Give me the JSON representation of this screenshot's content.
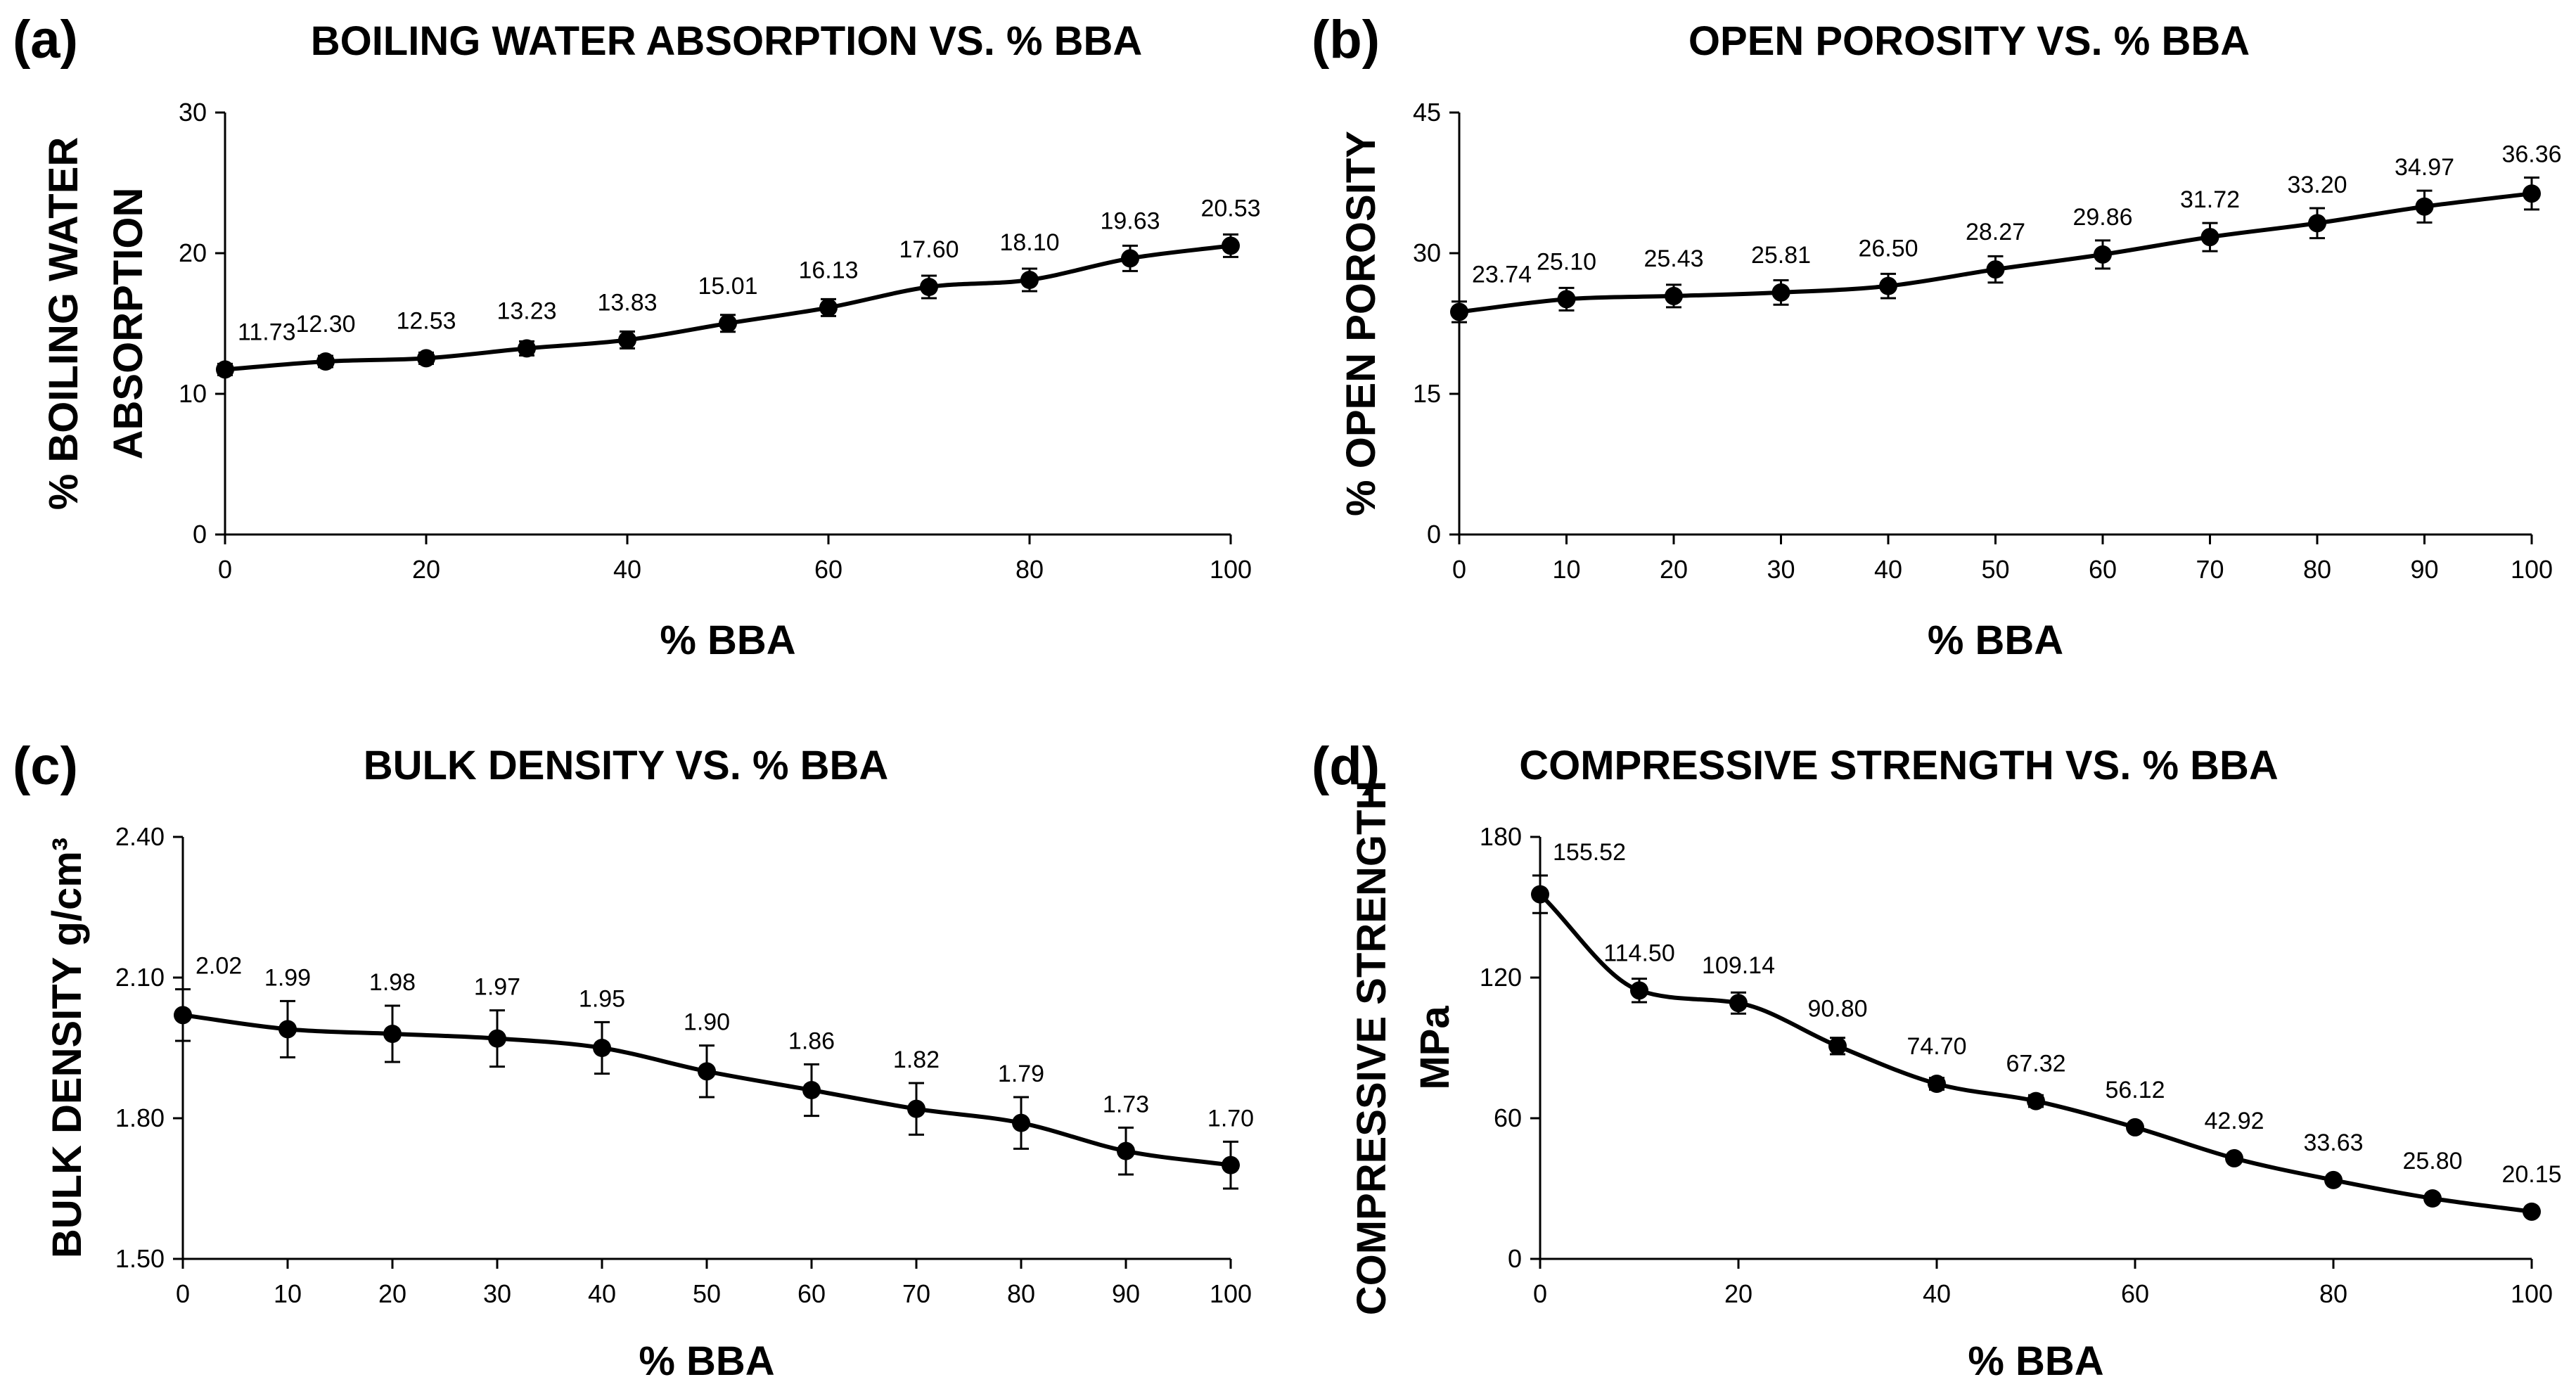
{
  "chart_data": [
    {
      "type": "line",
      "panel": "(a)",
      "title": "BOILING WATER ABSORPTION VS. % BBA",
      "xlabel": "% BBA",
      "ylabel": [
        "% BOILING WATER",
        "ABSORPTION"
      ],
      "x": [
        0,
        10,
        20,
        30,
        40,
        50,
        60,
        70,
        80,
        90,
        100
      ],
      "values": [
        11.73,
        12.3,
        12.53,
        13.23,
        13.83,
        15.01,
        16.13,
        17.6,
        18.1,
        19.63,
        20.53
      ],
      "labels": [
        "11.73",
        "12.30",
        "12.53",
        "13.23",
        "13.83",
        "15.01",
        "16.13",
        "17.60",
        "18.10",
        "19.63",
        "20.53"
      ],
      "errors": [
        0.4,
        0.4,
        0.4,
        0.5,
        0.6,
        0.6,
        0.6,
        0.8,
        0.8,
        0.9,
        0.8
      ],
      "xlim": [
        0,
        100
      ],
      "ylim": [
        0,
        30
      ],
      "xticks": [
        0,
        20,
        40,
        60,
        80,
        100
      ],
      "xtick_labels": [
        "0",
        "20",
        "40",
        "60",
        "80",
        "100"
      ],
      "yticks": [
        0,
        10,
        20,
        30
      ],
      "ytick_labels": [
        "0",
        "10",
        "20",
        "30"
      ],
      "grid": false,
      "legend": "none"
    },
    {
      "type": "line",
      "panel": "(b)",
      "title": "OPEN POROSITY VS. % BBA",
      "xlabel": "% BBA",
      "ylabel": [
        "% OPEN POROSITY"
      ],
      "x": [
        0,
        10,
        20,
        30,
        40,
        50,
        60,
        70,
        80,
        90,
        100
      ],
      "values": [
        23.74,
        25.1,
        25.43,
        25.81,
        26.5,
        28.27,
        29.86,
        31.72,
        33.2,
        34.97,
        36.36
      ],
      "labels": [
        "23.74",
        "25.10",
        "25.43",
        "25.81",
        "26.50",
        "28.27",
        "29.86",
        "31.72",
        "33.20",
        "34.97",
        "36.36"
      ],
      "errors": [
        1.1,
        1.2,
        1.2,
        1.3,
        1.3,
        1.4,
        1.5,
        1.5,
        1.6,
        1.7,
        1.7
      ],
      "xlim": [
        0,
        100
      ],
      "ylim": [
        0,
        45
      ],
      "xticks": [
        0,
        10,
        20,
        30,
        40,
        50,
        60,
        70,
        80,
        90,
        100
      ],
      "xtick_labels": [
        "0",
        "10",
        "20",
        "30",
        "40",
        "50",
        "60",
        "70",
        "80",
        "90",
        "100"
      ],
      "yticks": [
        0,
        15,
        30,
        45
      ],
      "ytick_labels": [
        "0",
        "15",
        "30",
        "45"
      ],
      "grid": false,
      "legend": "none"
    },
    {
      "type": "line",
      "panel": "(c)",
      "title": "BULK DENSITY VS. % BBA",
      "xlabel": "% BBA",
      "ylabel": [
        "BULK DENSITY  g/cm³"
      ],
      "x": [
        0,
        10,
        20,
        30,
        40,
        50,
        60,
        70,
        80,
        90,
        100
      ],
      "values": [
        2.02,
        1.99,
        1.98,
        1.97,
        1.95,
        1.9,
        1.86,
        1.82,
        1.79,
        1.73,
        1.7
      ],
      "labels": [
        "2.02",
        "1.99",
        "1.98",
        "1.97",
        "1.95",
        "1.90",
        "1.86",
        "1.82",
        "1.79",
        "1.73",
        "1.70"
      ],
      "errors": [
        0.055,
        0.06,
        0.06,
        0.06,
        0.055,
        0.055,
        0.055,
        0.055,
        0.055,
        0.05,
        0.05
      ],
      "xlim": [
        0,
        100
      ],
      "ylim": [
        1.5,
        2.4
      ],
      "xticks": [
        0,
        10,
        20,
        30,
        40,
        50,
        60,
        70,
        80,
        90,
        100
      ],
      "xtick_labels": [
        "0",
        "10",
        "20",
        "30",
        "40",
        "50",
        "60",
        "70",
        "80",
        "90",
        "100"
      ],
      "yticks": [
        1.5,
        1.8,
        2.1,
        2.4
      ],
      "ytick_labels": [
        "1.50",
        "1.80",
        "2.10",
        "2.40"
      ],
      "grid": false,
      "legend": "none"
    },
    {
      "type": "line",
      "panel": "(d)",
      "title": "COMPRESSIVE STRENGTH VS. % BBA",
      "xlabel": "% BBA",
      "ylabel": [
        "COMPRESSIVE STRENGTH",
        "MPa"
      ],
      "x": [
        0,
        10,
        20,
        30,
        40,
        50,
        60,
        70,
        80,
        90,
        100
      ],
      "values": [
        155.52,
        114.5,
        109.14,
        90.8,
        74.7,
        67.32,
        56.12,
        42.92,
        33.63,
        25.8,
        20.15
      ],
      "labels": [
        "155.52",
        "114.50",
        "109.14",
        "90.80",
        "74.70",
        "67.32",
        "56.12",
        "42.92",
        "33.63",
        "25.80",
        "20.15"
      ],
      "errors": [
        8,
        5,
        4.5,
        3.5,
        2.5,
        2.5,
        1.5,
        1.5,
        1,
        1,
        1
      ],
      "xlim": [
        0,
        100
      ],
      "ylim": [
        0,
        180
      ],
      "xticks": [
        0,
        20,
        40,
        60,
        80,
        100
      ],
      "xtick_labels": [
        "0",
        "20",
        "40",
        "60",
        "80",
        "100"
      ],
      "yticks": [
        0,
        60,
        120,
        180
      ],
      "ytick_labels": [
        "0",
        "60",
        "120",
        "180"
      ],
      "grid": false,
      "legend": "none"
    }
  ]
}
